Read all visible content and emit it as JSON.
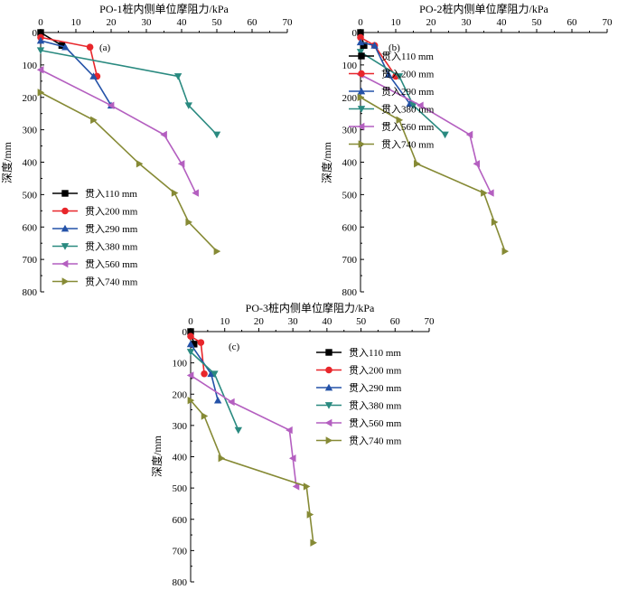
{
  "chart_data": [
    {
      "type": "line",
      "title": "PO-1桩内侧单位摩阻力/kPa",
      "panel_label": "(a)",
      "ylabel": "深度/mm",
      "xlim": [
        0,
        70
      ],
      "ylim": [
        0,
        800
      ],
      "xticks": [
        "0",
        "10",
        "20",
        "30",
        "40",
        "50",
        "60",
        "70"
      ],
      "yticks": [
        "0",
        "100",
        "200",
        "300",
        "400",
        "500",
        "600",
        "700",
        "800"
      ],
      "x_axis_position": "top",
      "y_inverted": true,
      "grid": false,
      "legend": "bottom-left",
      "series": [
        {
          "name": "贯入110 mm",
          "marker": "square",
          "color": "#000000",
          "points": [
            [
              0,
              0
            ],
            [
              6,
              40
            ]
          ]
        },
        {
          "name": "贯入200 mm",
          "marker": "circle",
          "color": "#e8262b",
          "points": [
            [
              0,
              15
            ],
            [
              14,
              45
            ],
            [
              16,
              135
            ]
          ]
        },
        {
          "name": "贯入290 mm",
          "marker": "triangle-up",
          "color": "#2452a8",
          "points": [
            [
              0,
              25
            ],
            [
              7,
              45
            ],
            [
              15,
              135
            ],
            [
              20,
              225
            ]
          ]
        },
        {
          "name": "贯入380 mm",
          "marker": "triangle-down",
          "color": "#2a8a80",
          "points": [
            [
              0,
              55
            ],
            [
              39,
              135
            ],
            [
              42,
              225
            ],
            [
              50,
              315
            ]
          ]
        },
        {
          "name": "贯入560 mm",
          "marker": "triangle-left",
          "color": "#b45fc0",
          "points": [
            [
              0,
              115
            ],
            [
              20,
              225
            ],
            [
              35,
              315
            ],
            [
              40,
              405
            ],
            [
              44,
              495
            ]
          ]
        },
        {
          "name": "贯入740 mm",
          "marker": "triangle-right",
          "color": "#868a35",
          "points": [
            [
              0,
              185
            ],
            [
              15,
              270
            ],
            [
              28,
              405
            ],
            [
              38,
              495
            ],
            [
              42,
              585
            ],
            [
              50,
              675
            ]
          ]
        }
      ]
    },
    {
      "type": "line",
      "title": "PO-2桩内侧单位摩阻力/kPa",
      "panel_label": "(b)",
      "ylabel": "深度/mm",
      "xlim": [
        0,
        70
      ],
      "ylim": [
        0,
        800
      ],
      "xticks": [
        "0",
        "10",
        "20",
        "30",
        "40",
        "50",
        "60",
        "70"
      ],
      "yticks": [
        "0",
        "100",
        "200",
        "300",
        "400",
        "500",
        "600",
        "700",
        "800"
      ],
      "x_axis_position": "top",
      "y_inverted": true,
      "grid": false,
      "legend": "top-right",
      "series": [
        {
          "name": "贯入110 mm",
          "marker": "square",
          "color": "#000000",
          "points": [
            [
              0,
              0
            ],
            [
              1,
              40
            ]
          ]
        },
        {
          "name": "贯入200 mm",
          "marker": "circle",
          "color": "#e8262b",
          "points": [
            [
              0,
              15
            ],
            [
              4,
              40
            ],
            [
              10,
              135
            ]
          ]
        },
        {
          "name": "贯入290 mm",
          "marker": "triangle-up",
          "color": "#2452a8",
          "points": [
            [
              0,
              30
            ],
            [
              4,
              40
            ],
            [
              8,
              130
            ],
            [
              14,
              220
            ]
          ]
        },
        {
          "name": "贯入380 mm",
          "marker": "triangle-down",
          "color": "#2a8a80",
          "points": [
            [
              0,
              60
            ],
            [
              11,
              135
            ],
            [
              15,
              225
            ],
            [
              24,
              315
            ]
          ]
        },
        {
          "name": "贯入560 mm",
          "marker": "triangle-left",
          "color": "#b45fc0",
          "points": [
            [
              0,
              130
            ],
            [
              17,
              225
            ],
            [
              31,
              315
            ],
            [
              33,
              405
            ],
            [
              37,
              495
            ]
          ]
        },
        {
          "name": "贯入740 mm",
          "marker": "triangle-right",
          "color": "#868a35",
          "points": [
            [
              0,
              200
            ],
            [
              11,
              270
            ],
            [
              16,
              405
            ],
            [
              35,
              495
            ],
            [
              38,
              585
            ],
            [
              41,
              675
            ]
          ]
        }
      ]
    },
    {
      "type": "line",
      "title": "PO-3桩内侧单位摩阻力/kPa",
      "panel_label": "(c)",
      "ylabel": "深度/mm",
      "xlim": [
        0,
        70
      ],
      "ylim": [
        0,
        800
      ],
      "xticks": [
        "0",
        "10",
        "20",
        "30",
        "40",
        "50",
        "60",
        "70"
      ],
      "yticks": [
        "0",
        "100",
        "200",
        "300",
        "400",
        "500",
        "600",
        "700",
        "800"
      ],
      "x_axis_position": "top",
      "y_inverted": true,
      "grid": false,
      "legend": "top-right",
      "series": [
        {
          "name": "贯入110 mm",
          "marker": "square",
          "color": "#000000",
          "points": [
            [
              0,
              0
            ],
            [
              1,
              40
            ]
          ]
        },
        {
          "name": "贯入200 mm",
          "marker": "circle",
          "color": "#e8262b",
          "points": [
            [
              0,
              15
            ],
            [
              3,
              35
            ],
            [
              4,
              135
            ]
          ]
        },
        {
          "name": "贯入290 mm",
          "marker": "triangle-up",
          "color": "#2452a8",
          "points": [
            [
              0,
              40
            ],
            [
              6,
              135
            ],
            [
              8,
              220
            ]
          ]
        },
        {
          "name": "贯入380 mm",
          "marker": "triangle-down",
          "color": "#2a8a80",
          "points": [
            [
              0,
              65
            ],
            [
              7,
              135
            ],
            [
              14,
              315
            ]
          ]
        },
        {
          "name": "贯入560 mm",
          "marker": "triangle-left",
          "color": "#b45fc0",
          "points": [
            [
              0,
              140
            ],
            [
              12,
              225
            ],
            [
              29,
              315
            ],
            [
              30,
              405
            ],
            [
              31,
              495
            ]
          ]
        },
        {
          "name": "贯入740 mm",
          "marker": "triangle-right",
          "color": "#868a35",
          "points": [
            [
              0,
              220
            ],
            [
              4,
              270
            ],
            [
              9,
              405
            ],
            [
              34,
              495
            ],
            [
              35,
              585
            ],
            [
              36,
              675
            ]
          ]
        }
      ]
    }
  ]
}
